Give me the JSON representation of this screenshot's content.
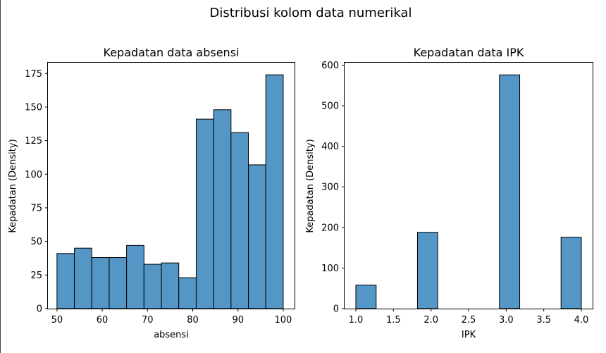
{
  "figure": {
    "suptitle": "Distribusi kolom data numerikal"
  },
  "colors": {
    "bar_fill": "#5497c6",
    "bar_edge": "#000000",
    "axis": "#000000",
    "background": "#ffffff"
  },
  "chart_data": [
    {
      "type": "bar",
      "title": "Kepadatan data absensi",
      "xlabel": "absensi",
      "ylabel": "Kepadatan (Density)",
      "xlim": [
        48,
        102.5
      ],
      "ylim": [
        0,
        183
      ],
      "xticks": [
        50,
        60,
        70,
        80,
        90,
        100
      ],
      "yticks": [
        0,
        25,
        50,
        75,
        100,
        125,
        150,
        175
      ],
      "grid": false,
      "bin_edges": [
        50,
        53.85,
        57.69,
        61.54,
        65.38,
        69.23,
        73.08,
        76.92,
        80.77,
        84.62,
        88.46,
        92.31,
        96.15,
        100
      ],
      "values": [
        41,
        45,
        38,
        38,
        47,
        33,
        34,
        23,
        141,
        148,
        131,
        107,
        174
      ]
    },
    {
      "type": "bar",
      "title": "Kepadatan data IPK",
      "xlabel": "IPK",
      "ylabel": "Kepadatan (Density)",
      "xlim": [
        0.85,
        4.15
      ],
      "ylim": [
        0,
        606
      ],
      "xticks": [
        "1.0",
        "1.5",
        "2.0",
        "2.5",
        "3.0",
        "3.5",
        "4.0"
      ],
      "yticks": [
        0,
        100,
        200,
        300,
        400,
        500,
        600
      ],
      "grid": false,
      "bin_edges": [
        1.0,
        1.27,
        1.55,
        1.82,
        2.09,
        2.36,
        2.64,
        2.91,
        3.18,
        3.45,
        3.73,
        4.0
      ],
      "values": [
        58,
        0,
        0,
        188,
        0,
        0,
        0,
        576,
        0,
        0,
        176
      ]
    }
  ]
}
